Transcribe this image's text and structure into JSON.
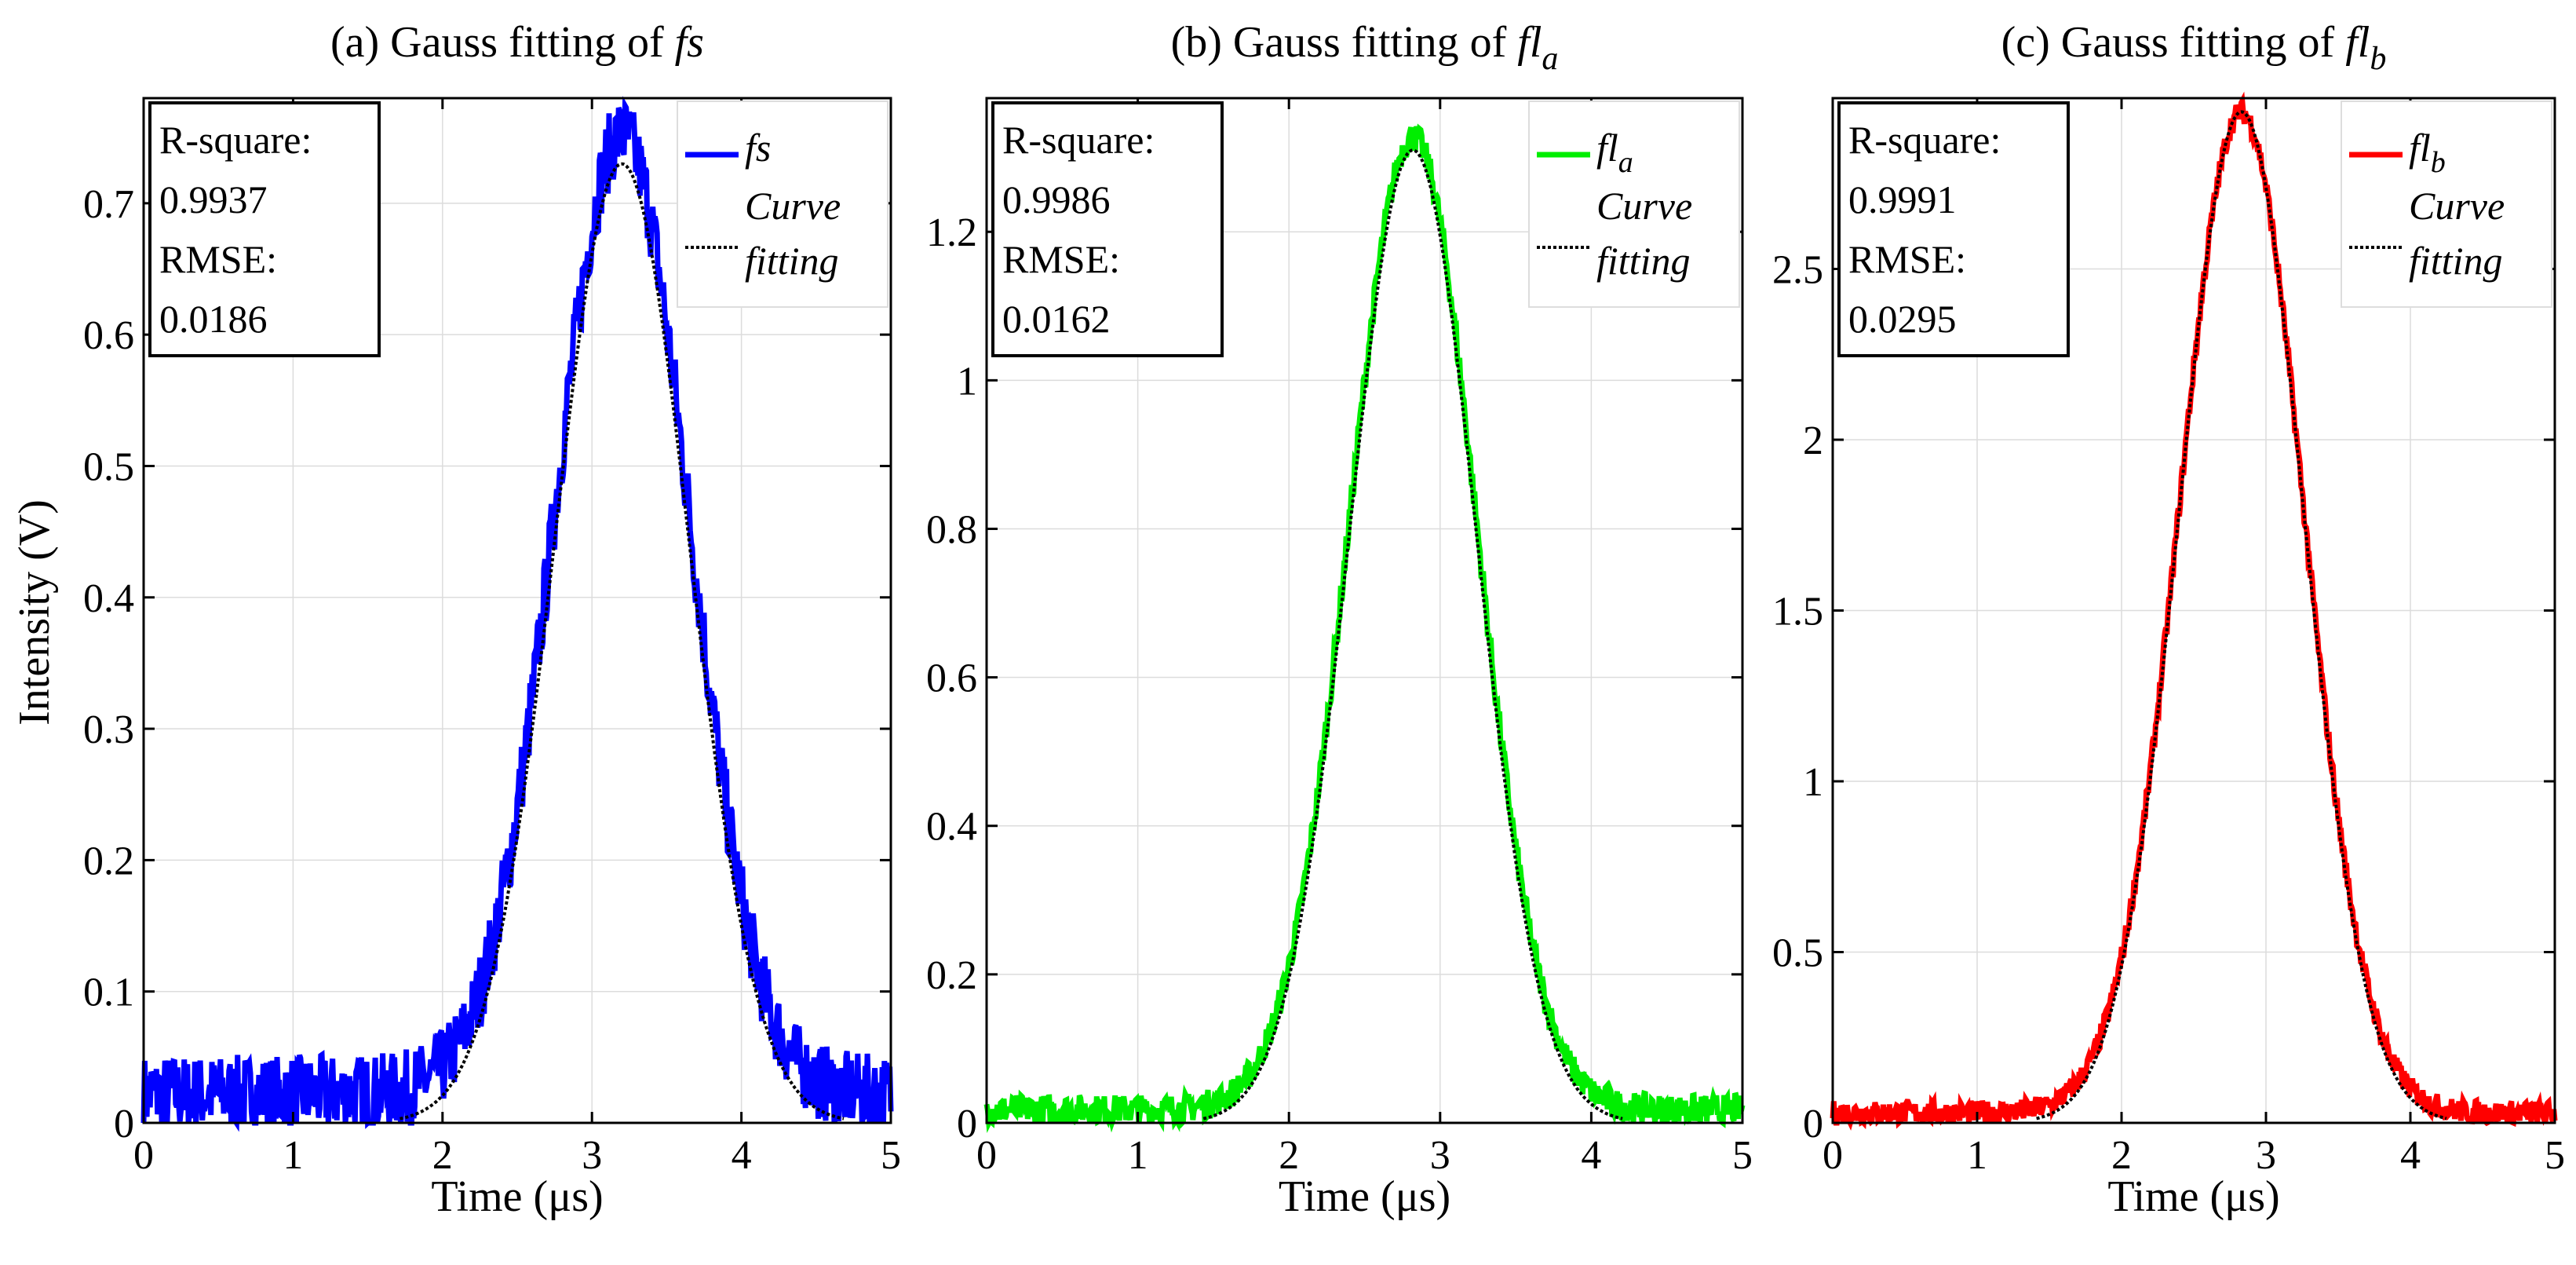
{
  "figure": {
    "ylabel": "Intensity (V)"
  },
  "chart_data": [
    {
      "type": "line",
      "title": "(a) Gauss fitting of ",
      "title_symbol": "fs",
      "title_sub": "",
      "xlabel": "Time (μs)",
      "ylabel": "Intensity (V)",
      "xlim": [
        0,
        5
      ],
      "ylim": [
        0,
        0.78
      ],
      "xticks": [
        0,
        1,
        2,
        3,
        4,
        5
      ],
      "yticks": [
        0,
        0.1,
        0.2,
        0.3,
        0.4,
        0.5,
        0.6,
        0.7
      ],
      "grid": true,
      "legend_position": "top-right",
      "stats": {
        "r_label": "R-square:",
        "r_value": "0.9937",
        "rmse_label": "RMSE:",
        "rmse_value": "0.0186"
      },
      "series": [
        {
          "name": "fs",
          "name_sub": "",
          "role": "measured",
          "color": "#0000ff",
          "model": {
            "amplitude": 0.73,
            "center": 3.2,
            "sigma": 0.45,
            "baseline": 0.022,
            "noise": 0.03
          }
        },
        {
          "name": "Curve fitting",
          "legend_lines": [
            "Curve",
            "fitting"
          ],
          "role": "fit",
          "color": "#000000",
          "model": {
            "amplitude": 0.73,
            "center": 3.2,
            "sigma": 0.45,
            "baseline": 0.0
          }
        }
      ]
    },
    {
      "type": "line",
      "title": "(b) Gauss fitting of ",
      "title_symbol": "fl",
      "title_sub": "a",
      "xlabel": "Time (μs)",
      "ylabel": "",
      "xlim": [
        0,
        5
      ],
      "ylim": [
        0,
        1.38
      ],
      "xticks": [
        0,
        1,
        2,
        3,
        4,
        5
      ],
      "yticks": [
        0,
        0.2,
        0.4,
        0.6,
        0.8,
        1,
        1.2
      ],
      "grid": true,
      "legend_position": "top-right",
      "stats": {
        "r_label": "R-square:",
        "r_value": "0.9986",
        "rmse_label": "RMSE:",
        "rmse_value": "0.0162"
      },
      "series": [
        {
          "name": "fl",
          "name_sub": "a",
          "role": "measured",
          "color": "#00ee00",
          "model": {
            "amplitude": 1.31,
            "center": 2.82,
            "sigma": 0.42,
            "baseline": 0.018,
            "noise": 0.02
          }
        },
        {
          "name": "Curve fitting",
          "legend_lines": [
            "Curve",
            "fitting"
          ],
          "role": "fit",
          "color": "#000000",
          "model": {
            "amplitude": 1.31,
            "center": 2.82,
            "sigma": 0.42,
            "baseline": 0.0
          }
        }
      ]
    },
    {
      "type": "line",
      "title": "(c) Gauss fitting of ",
      "title_symbol": "fl",
      "title_sub": "b",
      "xlabel": "Time (μs)",
      "ylabel": "",
      "xlim": [
        0,
        5
      ],
      "ylim": [
        0,
        3.0
      ],
      "xticks": [
        0,
        1,
        2,
        3,
        4,
        5
      ],
      "yticks": [
        0,
        0.5,
        1,
        1.5,
        2,
        2.5
      ],
      "grid": true,
      "legend_position": "top-right",
      "stats": {
        "r_label": "R-square:",
        "r_value": "0.9991",
        "rmse_label": "RMSE:",
        "rmse_value": "0.0295"
      },
      "series": [
        {
          "name": "fl",
          "name_sub": "b",
          "role": "measured",
          "color": "#ff0000",
          "model": {
            "amplitude": 2.93,
            "center": 2.83,
            "sigma": 0.43,
            "baseline": 0.03,
            "noise": 0.035
          }
        },
        {
          "name": "Curve fitting",
          "legend_lines": [
            "Curve",
            "fitting"
          ],
          "role": "fit",
          "color": "#000000",
          "model": {
            "amplitude": 2.96,
            "center": 2.83,
            "sigma": 0.43,
            "baseline": 0.0
          }
        }
      ]
    }
  ]
}
